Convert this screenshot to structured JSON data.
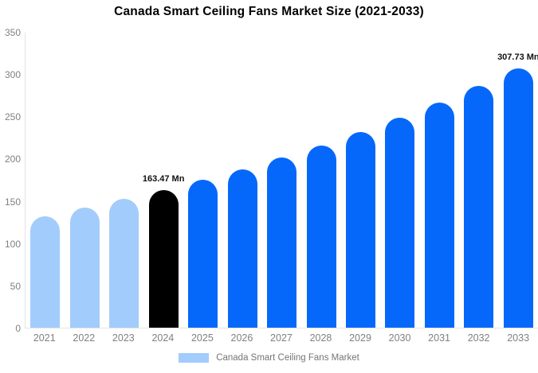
{
  "title": "Canada Smart Ceiling Fans Market Size (2021-2033)",
  "legend": {
    "label": "Canada Smart Ceiling Fans Market",
    "swatch_color": "#a2ccfb"
  },
  "colors": {
    "historical_bar": "#a2ccfb",
    "base_year_bar": "#000000",
    "forecast_bar": "#0668fb",
    "axis_text": "#808080",
    "data_label_text": "#111111",
    "axis_line": "#e3e3e3",
    "title_text": "#000000"
  },
  "chart_data": {
    "type": "bar",
    "title": "Canada Smart Ceiling Fans Market Size (2021-2033)",
    "xlabel": "",
    "ylabel": "",
    "unit": "Mn",
    "categories": [
      "2021",
      "2022",
      "2023",
      "2024",
      "2025",
      "2026",
      "2027",
      "2028",
      "2029",
      "2030",
      "2031",
      "2032",
      "2033"
    ],
    "values": [
      132.5,
      142.1,
      152.4,
      163.47,
      175.4,
      188.1,
      201.8,
      216.5,
      232.2,
      249.1,
      267.2,
      286.6,
      307.73
    ],
    "bar_colors": [
      "#a2ccfb",
      "#a2ccfb",
      "#a2ccfb",
      "#000000",
      "#0668fb",
      "#0668fb",
      "#0668fb",
      "#0668fb",
      "#0668fb",
      "#0668fb",
      "#0668fb",
      "#0668fb",
      "#0668fb"
    ],
    "data_labels": {
      "2024": "163.47 Mn",
      "2033": "307.73 Mn"
    },
    "ylim": [
      0,
      350
    ],
    "yticks": [
      0,
      50,
      100,
      150,
      200,
      250,
      300,
      350
    ],
    "grid": false,
    "legend_position": "bottom",
    "legend_entries": [
      "Canada Smart Ceiling Fans Market"
    ]
  }
}
